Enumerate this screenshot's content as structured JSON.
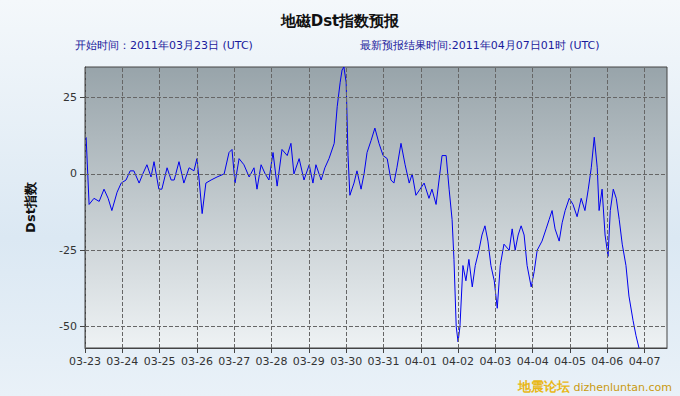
{
  "chart_data": {
    "type": "line",
    "title": "地磁Dst指数预报",
    "subtitle": [
      "开始时间：2011年03月23日 (UTC)",
      "最新预报结果时间:2011年04月07日01时 (UTC)"
    ],
    "y_label": "Dst指数",
    "annotations": [
      "地震论坛",
      "dizhenluntan.com"
    ],
    "color": "#0000ee",
    "grid": true,
    "xlim": [
      0,
      15.6
    ],
    "xticks": [
      {
        "value": 0,
        "label": "03-23"
      },
      {
        "value": 1,
        "label": "03-24"
      },
      {
        "value": 2,
        "label": "03-25"
      },
      {
        "value": 3,
        "label": "03-26"
      },
      {
        "value": 4,
        "label": "03-27"
      },
      {
        "value": 5,
        "label": "03-28"
      },
      {
        "value": 6,
        "label": "03-29"
      },
      {
        "value": 7,
        "label": "03-30"
      },
      {
        "value": 8,
        "label": "03-31"
      },
      {
        "value": 9,
        "label": "04-01"
      },
      {
        "value": 10,
        "label": "04-02"
      },
      {
        "value": 11,
        "label": "04-03"
      },
      {
        "value": 12,
        "label": "04-04"
      },
      {
        "value": 13,
        "label": "04-05"
      },
      {
        "value": 14,
        "label": "04-06"
      },
      {
        "value": 15,
        "label": "04-07"
      }
    ],
    "ylim": [
      -57,
      35
    ],
    "yticks": [
      -50,
      -25,
      0,
      25
    ],
    "x": [
      0.03,
      0.11,
      0.24,
      0.38,
      0.51,
      0.62,
      0.72,
      0.86,
      0.97,
      1.1,
      1.21,
      1.31,
      1.45,
      1.55,
      1.66,
      1.77,
      1.85,
      1.98,
      2.06,
      2.2,
      2.31,
      2.39,
      2.52,
      2.65,
      2.79,
      2.92,
      3.0,
      3.06,
      3.14,
      3.24,
      3.38,
      3.54,
      3.73,
      3.86,
      3.94,
      4.02,
      4.13,
      4.26,
      4.4,
      4.53,
      4.61,
      4.72,
      4.83,
      4.93,
      5.04,
      5.15,
      5.28,
      5.42,
      5.52,
      5.6,
      5.74,
      5.87,
      6.01,
      6.11,
      6.19,
      6.33,
      6.43,
      6.54,
      6.68,
      6.76,
      6.84,
      6.89,
      6.94,
      7.0,
      7.05,
      7.1,
      7.21,
      7.29,
      7.4,
      7.48,
      7.56,
      7.67,
      7.77,
      7.88,
      7.99,
      8.1,
      8.2,
      8.28,
      8.36,
      8.47,
      8.58,
      8.69,
      8.77,
      8.87,
      8.98,
      9.09,
      9.22,
      9.3,
      9.41,
      9.49,
      9.57,
      9.68,
      9.76,
      9.84,
      9.89,
      9.95,
      10.0,
      10.05,
      10.13,
      10.21,
      10.29,
      10.38,
      10.46,
      10.56,
      10.64,
      10.72,
      10.8,
      10.88,
      10.97,
      11.05,
      11.13,
      11.23,
      11.37,
      11.45,
      11.53,
      11.61,
      11.69,
      11.77,
      11.85,
      11.96,
      12.04,
      12.12,
      12.25,
      12.36,
      12.44,
      12.52,
      12.6,
      12.71,
      12.79,
      12.87,
      12.98,
      13.08,
      13.19,
      13.3,
      13.4,
      13.49,
      13.57,
      13.65,
      13.73,
      13.78,
      13.86,
      13.94,
      14.02,
      14.08,
      14.16,
      14.24,
      14.32,
      14.4,
      14.5,
      14.58,
      14.69,
      14.77,
      14.85
    ],
    "values": [
      12,
      -10,
      -8,
      -9,
      -5,
      -8,
      -12,
      -6,
      -3,
      -2,
      1,
      1,
      -3,
      0,
      3,
      -1,
      4,
      -5,
      -5,
      2,
      -2,
      -2,
      4,
      -3,
      2,
      1,
      5,
      -2,
      -13,
      -3,
      -2,
      -1,
      0,
      7,
      8,
      -3,
      5,
      3,
      -1,
      2,
      -5,
      3,
      0,
      -2,
      7,
      -4,
      8,
      6,
      10,
      0,
      5,
      -2,
      3,
      -3,
      3,
      -2,
      2,
      5,
      10,
      22,
      30,
      34,
      35,
      30,
      6,
      -7,
      -3,
      1,
      -5,
      0,
      7,
      11,
      15,
      10,
      6,
      5,
      -2,
      -3,
      2,
      10,
      3,
      -3,
      0,
      -7,
      -5,
      -3,
      -8,
      -5,
      -10,
      -2,
      6,
      6,
      -5,
      -15,
      -28,
      -50,
      -55,
      -50,
      -30,
      -35,
      -28,
      -37,
      -30,
      -25,
      -20,
      -17,
      -22,
      -30,
      -35,
      -44,
      -30,
      -23,
      -25,
      -18,
      -25,
      -20,
      -17,
      -20,
      -30,
      -37,
      -32,
      -25,
      -22,
      -18,
      -15,
      -12,
      -18,
      -22,
      -16,
      -12,
      -8,
      -10,
      -14,
      -8,
      -12,
      -5,
      2,
      12,
      2,
      -12,
      -5,
      -20,
      -27,
      -12,
      -5,
      -8,
      -15,
      -23,
      -30,
      -40,
      -48,
      -53,
      -57
    ]
  }
}
